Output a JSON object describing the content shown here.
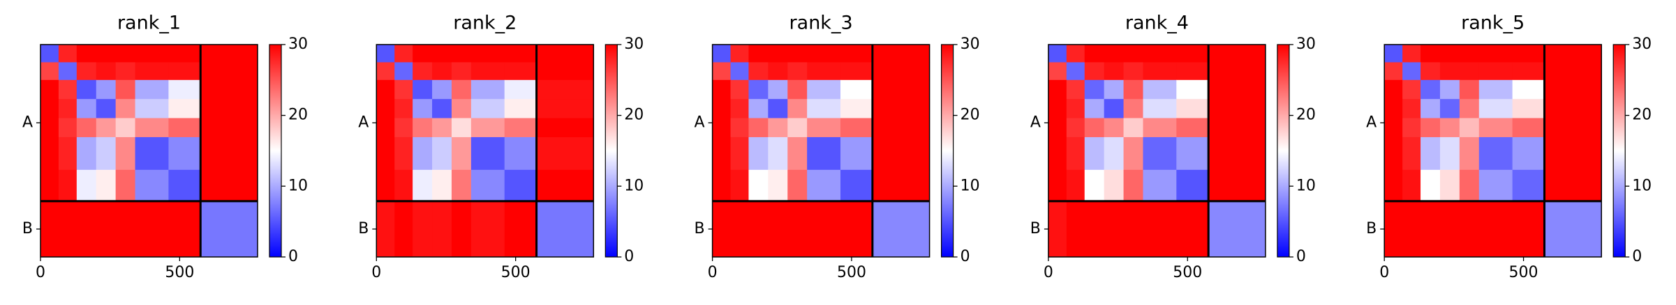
{
  "chart_data": [
    {
      "type": "heatmap",
      "title": "rank_1",
      "bins": [
        0,
        65,
        130,
        200,
        270,
        340,
        460,
        575,
        780
      ],
      "z": [
        [
          5,
          28,
          30,
          30,
          30,
          30,
          30,
          30
        ],
        [
          26,
          6,
          28,
          29,
          28,
          29,
          29,
          30
        ],
        [
          30,
          27,
          5,
          9,
          25,
          10,
          14,
          30
        ],
        [
          30,
          28,
          9,
          5,
          22,
          12,
          16,
          30
        ],
        [
          30,
          27,
          24,
          21,
          18,
          22,
          24,
          30
        ],
        [
          30,
          28,
          10,
          12,
          22,
          5,
          8,
          30
        ],
        [
          30,
          29,
          14,
          16,
          24,
          8,
          5,
          30
        ],
        [
          30,
          30,
          30,
          30,
          30,
          30,
          30,
          7
        ]
      ],
      "colormap": "bwr",
      "clim": [
        0,
        30
      ],
      "cticks": [
        0,
        10,
        20,
        30
      ],
      "chain_breaks": [
        575
      ],
      "xlim": [
        0,
        780
      ],
      "ylim": [
        780,
        0
      ],
      "xticks": [
        0,
        500
      ],
      "yticks": [
        {
          "value": 287.5,
          "label": "A"
        },
        {
          "value": 677.5,
          "label": "B"
        }
      ]
    },
    {
      "type": "heatmap",
      "title": "rank_2",
      "bins": [
        0,
        65,
        130,
        200,
        270,
        340,
        460,
        575,
        780
      ],
      "z": [
        [
          5,
          28,
          30,
          30,
          30,
          30,
          30,
          30
        ],
        [
          27,
          6,
          28,
          29,
          28,
          29,
          29,
          30
        ],
        [
          30,
          27,
          5,
          9,
          24,
          10,
          14,
          29
        ],
        [
          30,
          28,
          9,
          5,
          22,
          12,
          16,
          29
        ],
        [
          30,
          27,
          23,
          21,
          17,
          21,
          23,
          30
        ],
        [
          30,
          28,
          10,
          12,
          21,
          5,
          8,
          29
        ],
        [
          30,
          29,
          14,
          16,
          23,
          8,
          5,
          30
        ],
        [
          29,
          30,
          29,
          29,
          30,
          29,
          30,
          7
        ]
      ],
      "colormap": "bwr",
      "clim": [
        0,
        30
      ],
      "cticks": [
        0,
        10,
        20,
        30
      ],
      "chain_breaks": [
        575
      ],
      "xlim": [
        0,
        780
      ],
      "ylim": [
        780,
        0
      ],
      "xticks": [
        0,
        500
      ],
      "yticks": [
        {
          "value": 287.5,
          "label": "A"
        },
        {
          "value": 677.5,
          "label": "B"
        }
      ]
    },
    {
      "type": "heatmap",
      "title": "rank_3",
      "bins": [
        0,
        65,
        130,
        200,
        270,
        340,
        460,
        575,
        780
      ],
      "z": [
        [
          5,
          28,
          30,
          30,
          30,
          30,
          30,
          30
        ],
        [
          26,
          6,
          28,
          29,
          28,
          29,
          29,
          30
        ],
        [
          30,
          27,
          6,
          10,
          25,
          11,
          15,
          30
        ],
        [
          30,
          28,
          10,
          5,
          22,
          13,
          16,
          30
        ],
        [
          30,
          27,
          24,
          21,
          18,
          22,
          24,
          30
        ],
        [
          30,
          28,
          11,
          13,
          22,
          5,
          9,
          30
        ],
        [
          30,
          29,
          15,
          16,
          24,
          9,
          5,
          30
        ],
        [
          30,
          30,
          30,
          30,
          30,
          30,
          30,
          8
        ]
      ],
      "colormap": "bwr",
      "clim": [
        0,
        30
      ],
      "cticks": [
        0,
        10,
        20,
        30
      ],
      "chain_breaks": [
        575
      ],
      "xlim": [
        0,
        780
      ],
      "ylim": [
        780,
        0
      ],
      "xticks": [
        0,
        500
      ],
      "yticks": [
        {
          "value": 287.5,
          "label": "A"
        },
        {
          "value": 677.5,
          "label": "B"
        }
      ]
    },
    {
      "type": "heatmap",
      "title": "rank_4",
      "bins": [
        0,
        65,
        130,
        200,
        270,
        340,
        460,
        575,
        780
      ],
      "z": [
        [
          5,
          28,
          30,
          30,
          30,
          30,
          30,
          30
        ],
        [
          26,
          6,
          28,
          29,
          28,
          29,
          29,
          30
        ],
        [
          30,
          27,
          6,
          10,
          25,
          11,
          15,
          30
        ],
        [
          30,
          28,
          10,
          5,
          23,
          13,
          17,
          30
        ],
        [
          30,
          27,
          24,
          22,
          18,
          22,
          24,
          30
        ],
        [
          30,
          28,
          11,
          13,
          22,
          6,
          9,
          30
        ],
        [
          30,
          29,
          15,
          17,
          24,
          9,
          5,
          30
        ],
        [
          29,
          30,
          30,
          30,
          30,
          30,
          30,
          8
        ]
      ],
      "colormap": "bwr",
      "clim": [
        0,
        30
      ],
      "cticks": [
        0,
        10,
        20,
        30
      ],
      "chain_breaks": [
        575
      ],
      "xlim": [
        0,
        780
      ],
      "ylim": [
        780,
        0
      ],
      "xticks": [
        0,
        500
      ],
      "yticks": [
        {
          "value": 287.5,
          "label": "A"
        },
        {
          "value": 677.5,
          "label": "B"
        }
      ]
    },
    {
      "type": "heatmap",
      "title": "rank_5",
      "bins": [
        0,
        65,
        130,
        200,
        270,
        340,
        460,
        575,
        780
      ],
      "z": [
        [
          5,
          28,
          30,
          30,
          30,
          30,
          30,
          30
        ],
        [
          27,
          6,
          28,
          29,
          29,
          29,
          29,
          30
        ],
        [
          30,
          27,
          6,
          10,
          25,
          11,
          15,
          30
        ],
        [
          30,
          28,
          10,
          6,
          23,
          13,
          17,
          30
        ],
        [
          30,
          27,
          24,
          22,
          19,
          22,
          24,
          30
        ],
        [
          30,
          28,
          11,
          13,
          22,
          6,
          9,
          30
        ],
        [
          30,
          29,
          15,
          17,
          24,
          9,
          6,
          30
        ],
        [
          30,
          30,
          30,
          30,
          30,
          30,
          30,
          8
        ]
      ],
      "colormap": "bwr",
      "clim": [
        0,
        30
      ],
      "cticks": [
        0,
        10,
        20,
        30
      ],
      "chain_breaks": [
        575
      ],
      "xlim": [
        0,
        780
      ],
      "ylim": [
        780,
        0
      ],
      "xticks": [
        0,
        500
      ],
      "yticks": [
        {
          "value": 287.5,
          "label": "A"
        },
        {
          "value": 677.5,
          "label": "B"
        }
      ]
    }
  ]
}
